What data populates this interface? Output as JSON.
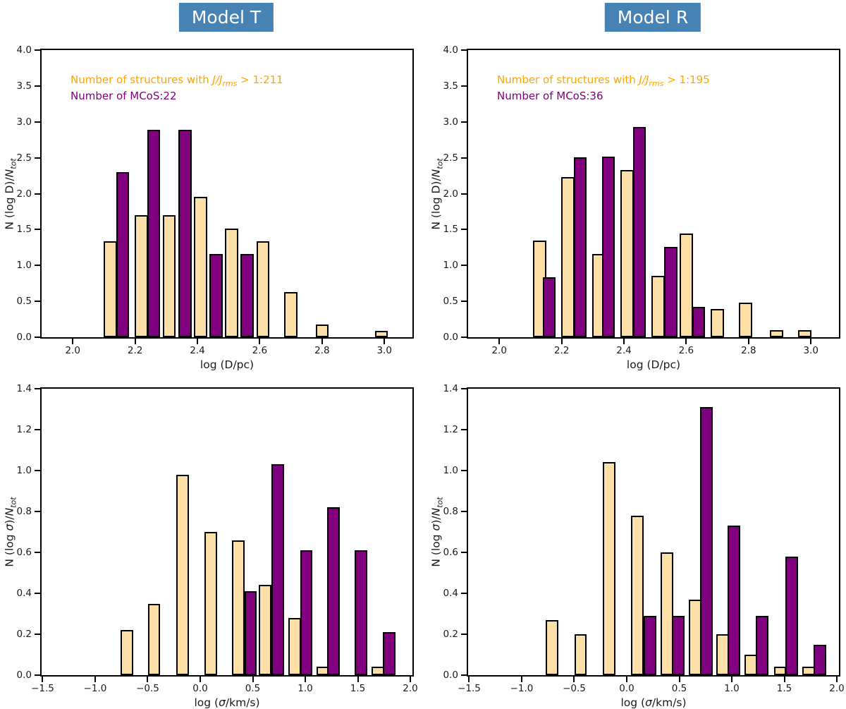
{
  "figure": {
    "titles": [
      {
        "label": "Model T"
      },
      {
        "label": "Model R"
      }
    ]
  },
  "colors": {
    "structures_fill": "#FBDFA7",
    "mcos_fill": "#800080",
    "bar_edge": "#000000",
    "title_bg": "#4682B4",
    "title_text": "#FFFFFF",
    "annotation_structures_text": "#FFA500",
    "annotation_mcos_text": "#800080",
    "axis_color": "#000000"
  },
  "chart_data": [
    {
      "type": "bar",
      "panel": "top-left",
      "group_title": "Model T",
      "xlabel": "log (D/pc)",
      "ylabel": "N (log D)/N_tot",
      "xlim": [
        1.9,
        3.09
      ],
      "ylim": [
        0.0,
        4.0
      ],
      "xticks": [
        2.0,
        2.2,
        2.4,
        2.6,
        2.8,
        3.0
      ],
      "yticks": [
        0.0,
        0.5,
        1.0,
        1.5,
        2.0,
        2.5,
        3.0,
        3.5,
        4.0
      ],
      "bar_width_x": 0.042,
      "annotations": {
        "structures": {
          "prefix": "Number of structures with ",
          "italic": "J/J",
          "sub": "rms",
          "suffix": " > 1:211"
        },
        "mcos": "Number of MCoS:22"
      },
      "series": [
        {
          "name": "structures",
          "legend": "Number of structures with J/Jrms > 1",
          "color_key": "structures_fill",
          "bars": [
            [
              2.12,
              1.34
            ],
            [
              2.22,
              1.7
            ],
            [
              2.31,
              1.7
            ],
            [
              2.41,
              1.96
            ],
            [
              2.51,
              1.51
            ],
            [
              2.61,
              1.34
            ],
            [
              2.7,
              0.63
            ],
            [
              2.8,
              0.18
            ],
            [
              2.99,
              0.09
            ]
          ]
        },
        {
          "name": "mcos",
          "legend": "MCoS",
          "color_key": "mcos_fill",
          "bars": [
            [
              2.16,
              2.3
            ],
            [
              2.26,
              2.89
            ],
            [
              2.36,
              2.89
            ],
            [
              2.46,
              1.16
            ],
            [
              2.56,
              1.16
            ]
          ]
        }
      ]
    },
    {
      "type": "bar",
      "panel": "top-right",
      "group_title": "Model R",
      "xlabel": "log (D/pc)",
      "ylabel": "N (log D)/N_tot",
      "xlim": [
        1.9,
        3.09
      ],
      "ylim": [
        0.0,
        4.0
      ],
      "xticks": [
        2.0,
        2.2,
        2.4,
        2.6,
        2.8,
        3.0
      ],
      "yticks": [
        0.0,
        0.5,
        1.0,
        1.5,
        2.0,
        2.5,
        3.0,
        3.5,
        4.0
      ],
      "bar_width_x": 0.042,
      "annotations": {
        "structures": {
          "prefix": "Number of structures with ",
          "italic": "J/J",
          "sub": "rms",
          "suffix": " > 1:195"
        },
        "mcos": "Number of MCoS:36"
      },
      "series": [
        {
          "name": "structures",
          "legend": "Number of structures with J/Jrms > 1",
          "color_key": "structures_fill",
          "bars": [
            [
              2.13,
              1.35
            ],
            [
              2.22,
              2.23
            ],
            [
              2.32,
              1.16
            ],
            [
              2.41,
              2.33
            ],
            [
              2.51,
              0.86
            ],
            [
              2.6,
              1.45
            ],
            [
              2.7,
              0.39
            ],
            [
              2.79,
              0.48
            ],
            [
              2.89,
              0.1
            ],
            [
              2.98,
              0.1
            ]
          ]
        },
        {
          "name": "mcos",
          "legend": "MCoS",
          "color_key": "mcos_fill",
          "bars": [
            [
              2.16,
              0.84
            ],
            [
              2.26,
              2.51
            ],
            [
              2.35,
              2.52
            ],
            [
              2.45,
              2.93
            ],
            [
              2.55,
              1.26
            ],
            [
              2.64,
              0.42
            ]
          ]
        }
      ]
    },
    {
      "type": "bar",
      "panel": "bottom-left",
      "group_title": "Model T",
      "xlabel": "log (σ/km/s)",
      "ylabel": "N (log σ)/N_tot",
      "xlim": [
        -1.51,
        2.02
      ],
      "ylim": [
        0.0,
        1.4
      ],
      "xticks": [
        -1.5,
        -1.0,
        -0.5,
        0.0,
        0.5,
        1.0,
        1.5,
        2.0
      ],
      "yticks": [
        0.0,
        0.2,
        0.4,
        0.6,
        0.8,
        1.0,
        1.2,
        1.4
      ],
      "bar_width_x": 0.12,
      "annotations": null,
      "series": [
        {
          "name": "structures",
          "legend": "Number of structures with J/Jrms > 1",
          "color_key": "structures_fill",
          "bars": [
            [
              -0.7,
              0.22
            ],
            [
              -0.44,
              0.35
            ],
            [
              -0.17,
              0.98
            ],
            [
              0.1,
              0.7
            ],
            [
              0.36,
              0.66
            ],
            [
              0.62,
              0.44
            ],
            [
              0.9,
              0.28
            ],
            [
              1.17,
              0.04
            ],
            [
              1.69,
              0.04
            ]
          ]
        },
        {
          "name": "mcos",
          "legend": "MCoS",
          "color_key": "mcos_fill",
          "bars": [
            [
              0.48,
              0.41
            ],
            [
              0.74,
              1.03
            ],
            [
              1.01,
              0.61
            ],
            [
              1.27,
              0.82
            ],
            [
              1.53,
              0.61
            ],
            [
              1.8,
              0.21
            ]
          ]
        }
      ]
    },
    {
      "type": "bar",
      "panel": "bottom-right",
      "group_title": "Model R",
      "xlabel": "log (σ/km/s)",
      "ylabel": "N (log σ)/N_tot",
      "xlim": [
        -1.51,
        2.02
      ],
      "ylim": [
        0.0,
        1.4
      ],
      "xticks": [
        -1.5,
        -1.0,
        -0.5,
        0.0,
        0.5,
        1.0,
        1.5,
        2.0
      ],
      "yticks": [
        0.0,
        0.2,
        0.4,
        0.6,
        0.8,
        1.0,
        1.2,
        1.4
      ],
      "bar_width_x": 0.12,
      "annotations": null,
      "series": [
        {
          "name": "structures",
          "legend": "Number of structures with J/Jrms > 1",
          "color_key": "structures_fill",
          "bars": [
            [
              -0.71,
              0.27
            ],
            [
              -0.44,
              0.2
            ],
            [
              -0.17,
              1.04
            ],
            [
              0.1,
              0.78
            ],
            [
              0.38,
              0.6
            ],
            [
              0.65,
              0.37
            ],
            [
              0.91,
              0.2
            ],
            [
              1.18,
              0.1
            ],
            [
              1.46,
              0.04
            ],
            [
              1.73,
              0.04
            ]
          ]
        },
        {
          "name": "mcos",
          "legend": "MCoS",
          "color_key": "mcos_fill",
          "bars": [
            [
              0.22,
              0.29
            ],
            [
              0.49,
              0.29
            ],
            [
              0.76,
              1.31
            ],
            [
              1.02,
              0.73
            ],
            [
              1.29,
              0.29
            ],
            [
              1.57,
              0.58
            ],
            [
              1.84,
              0.15
            ]
          ]
        }
      ]
    }
  ]
}
